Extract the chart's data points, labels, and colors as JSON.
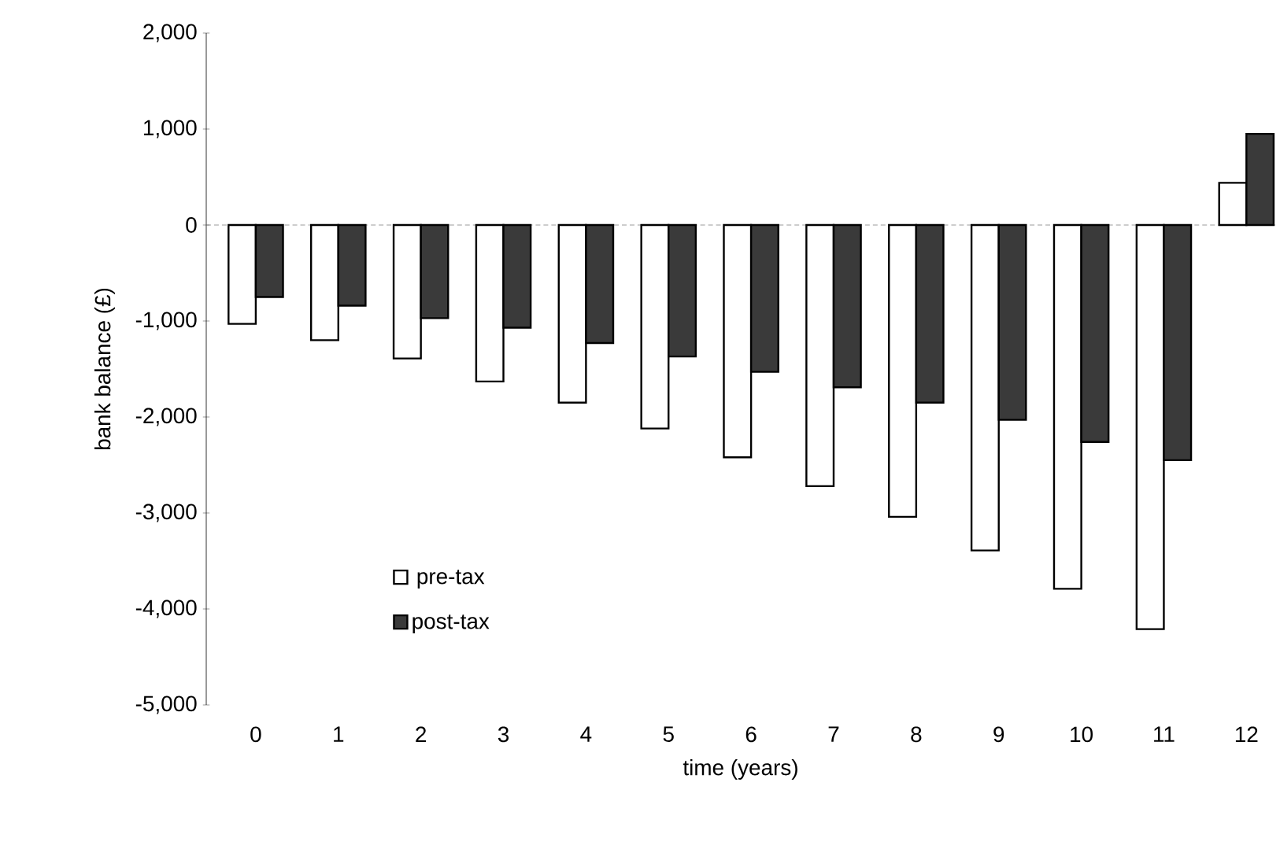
{
  "chart_data": {
    "type": "bar",
    "xlabel": "time (years)",
    "ylabel": "bank balance (£)",
    "categories": [
      "0",
      "1",
      "2",
      "3",
      "4",
      "5",
      "6",
      "7",
      "8",
      "9",
      "10",
      "11",
      "12"
    ],
    "series": [
      {
        "name": "pre-tax",
        "color": "#ffffff",
        "values": [
          -1030,
          -1200,
          -1390,
          -1630,
          -1850,
          -2120,
          -2420,
          -2720,
          -3040,
          -3390,
          -3790,
          -4210,
          440
        ]
      },
      {
        "name": "post-tax",
        "color": "#3a3a3a",
        "values": [
          -750,
          -840,
          -970,
          -1070,
          -1230,
          -1370,
          -1530,
          -1690,
          -1850,
          -2030,
          -2260,
          -2450,
          950
        ]
      }
    ],
    "ylim": [
      -5000,
      2000
    ],
    "yticks": [
      {
        "value": -5000,
        "label": "-5,000"
      },
      {
        "value": -4000,
        "label": "-4,000"
      },
      {
        "value": -3000,
        "label": "-3,000"
      },
      {
        "value": -2000,
        "label": "-2,000"
      },
      {
        "value": -1000,
        "label": "-1,000"
      },
      0,
      {
        "value": 1000,
        "label": "1,000"
      },
      {
        "value": 2000,
        "label": "2,000"
      }
    ],
    "legend": "bottom left"
  }
}
